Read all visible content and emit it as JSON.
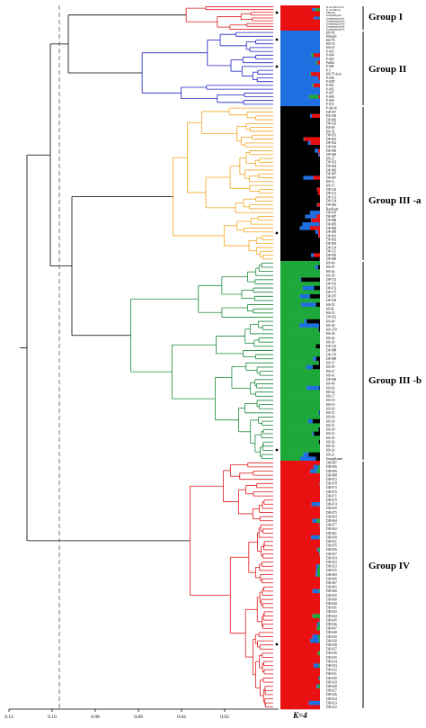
{
  "axis": {
    "ticks": [
      "0.12",
      "0.10",
      "0.08",
      "0.06",
      "0.04",
      "0.02"
    ]
  },
  "k_label": "K=4",
  "colors": {
    "red": "#e01b1b",
    "blue": "#1c22c0",
    "orange": "#f5a623",
    "green": "#1e8a3c",
    "yellow": "#ffff00",
    "bar_blue": "#1f6fe0",
    "bar_green": "#1fa83a",
    "bar_red": "#e81010"
  },
  "groups": [
    {
      "label": "Group I",
      "color": "red",
      "rows": 9,
      "bar_main": "bar_red",
      "mix": [
        "bar_blue",
        "bar_green"
      ],
      "samples": [
        "K.AS.569-22-W",
        "K.AS.569-22",
        "Milyang",
        "Jeongnangsan",
        "Jeongnangsan-01",
        "Jeongnangsan-02",
        "Jeongnangsan-03",
        "Jeongnangsan-04",
        "Jeongnangsan-05"
      ]
    },
    {
      "label": "Group II",
      "color": "blue",
      "rows": 20,
      "bar_main": "bar_blue",
      "mix": [
        "bar_green",
        "bar_red"
      ],
      "samples": [
        "HS-83",
        "Hongdo",
        "HS-79",
        "HS-74",
        "HS-43",
        "P-003",
        "P-004",
        "P-002",
        "PuDol",
        "P-DH",
        "P-5",
        "HS-75-4a-b",
        "P-006",
        "P-DST",
        "P-001",
        "P-005",
        "P-007",
        "P-008",
        "P-009",
        "P-010"
      ]
    },
    {
      "label": "Group III -a",
      "color": "orange",
      "rows": 40,
      "bar_main": "bar_yellow",
      "mix": [
        "bar_blue",
        "bar_red"
      ],
      "samples": [
        "P-SR-W",
        "DP-057",
        "HS-196",
        "DP-082",
        "DP-192",
        "HS-09",
        "HS-52",
        "DP-051",
        "DP-081",
        "DP-052",
        "DP-018",
        "DP-050",
        "DP-049",
        "HS-27",
        "DP-053",
        "DP-094",
        "DP-083",
        "DP-087",
        "DP-097",
        "HS-11",
        "HS-15",
        "DP-120",
        "DP-121",
        "DP-131",
        "DP-124",
        "DP-062",
        "BanPoint",
        "DP-185",
        "DP-087",
        "DP-088",
        "DP-085",
        "DP-084",
        "DP-090",
        "DP-091",
        "DP-092",
        "DP-093",
        "DP-114",
        "DP-111",
        "DP-093",
        "DP-089"
      ]
    },
    {
      "label": "Group III -b",
      "color": "green",
      "rows": 48,
      "bar_main": "bar_green",
      "mix": [
        "bar_blue",
        "bar_yellow"
      ],
      "samples": [
        "HS-60",
        "HS-07",
        "HS-44",
        "HS-28",
        "DP-172",
        "DP-182",
        "DP-152",
        "DP-171",
        "DP-187",
        "DP-106",
        "HS-55",
        "HS-B",
        "HS-33",
        "DP-052",
        "HS-40",
        "HS-38",
        "HS-27B",
        "HS-36",
        "HS-42",
        "HS-39",
        "DP-125",
        "DP-088",
        "DP-176",
        "DP-009",
        "HS-37",
        "HS-39",
        "HS-47",
        "HS-41",
        "DP-050",
        "HS-46",
        "HS-63",
        "HS-44",
        "HS-17",
        "HS-18",
        "HS-19",
        "HS-20",
        "HS-53",
        "HS-49",
        "HS-29",
        "HS-31",
        "HS-28",
        "HS-22",
        "HS-30",
        "HS-26",
        "HS-32",
        "HS-24",
        "HS-21",
        "SeongKonm"
      ]
    },
    {
      "label": "Group IV",
      "color": "red",
      "rows": 60,
      "bar_main": "bar_red",
      "mix": [
        "bar_blue",
        "bar_green"
      ],
      "samples": [
        "DD-087",
        "DD-090",
        "DD-089",
        "DD-088",
        "DD-072",
        "DD-078",
        "DD-073",
        "DD-070",
        "DD-071",
        "DD-079",
        "DD-074",
        "DD-059",
        "DD-075",
        "DD-063",
        "DD-064",
        "DD-077",
        "DD-062",
        "DD-061",
        "DD-058",
        "DD-051",
        "DD-055",
        "DD-056",
        "DD-057",
        "DD-054",
        "DD-053",
        "DD-052",
        "DD-025",
        "DD-069",
        "DD-066",
        "DD-067",
        "DD-065",
        "DD-068",
        "DD-050",
        "DD-060",
        "DD-040",
        "DD-041",
        "DD-043",
        "DD-044",
        "DD-045",
        "DD-046",
        "DD-047",
        "DD-048",
        "DD-049",
        "DD-039",
        "DD-038",
        "DD-037",
        "DD-036",
        "DD-035",
        "DD-034",
        "DD-033",
        "DD-032",
        "DD-031",
        "DD-030",
        "DD-029",
        "DD-028",
        "DD-027",
        "DD-026",
        "DD-024",
        "DD-023",
        "DD-022"
      ]
    }
  ]
}
